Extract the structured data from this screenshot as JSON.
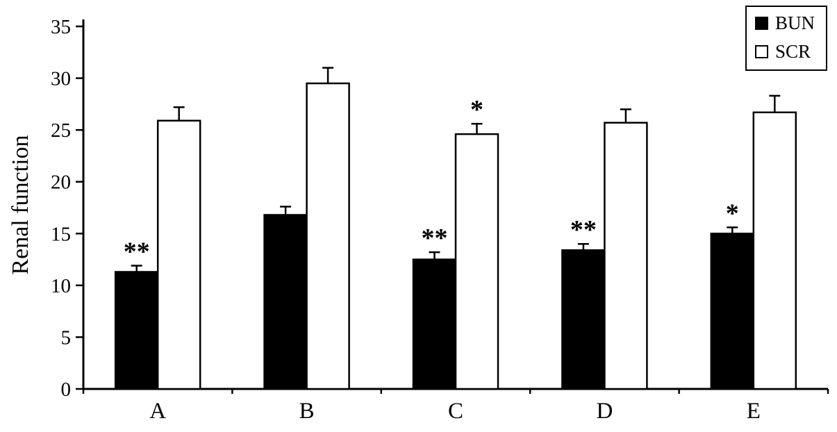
{
  "chart_data": {
    "type": "bar",
    "title": "",
    "xlabel": "",
    "ylabel": "Renal function",
    "ylim": [
      0,
      35
    ],
    "yticks": [
      0,
      5,
      10,
      15,
      20,
      25,
      30,
      35
    ],
    "grid": false,
    "legend_position": "top-right",
    "categories": [
      "A",
      "B",
      "C",
      "D",
      "E"
    ],
    "series": [
      {
        "name": "BUN",
        "color": "#000000",
        "values": [
          11.3,
          16.8,
          12.5,
          13.4,
          15.0
        ],
        "errors": [
          0.6,
          0.8,
          0.7,
          0.6,
          0.6
        ],
        "annotations": [
          "**",
          "",
          "**",
          "**",
          "*"
        ]
      },
      {
        "name": "SCR",
        "color": "#ffffff",
        "values": [
          25.9,
          29.5,
          24.6,
          25.7,
          26.7
        ],
        "errors": [
          1.3,
          1.5,
          1.0,
          1.3,
          1.6
        ],
        "annotations": [
          "",
          "",
          "*",
          "",
          ""
        ]
      }
    ],
    "annotation_legend": {
      "double_asterisk": "**",
      "single_asterisk": "*"
    }
  }
}
